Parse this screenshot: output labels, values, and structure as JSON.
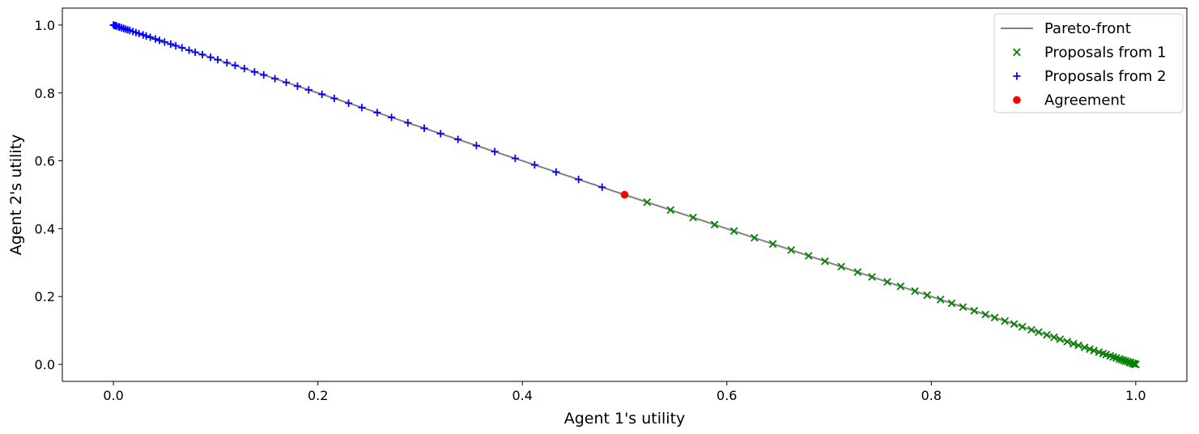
{
  "chart_data": {
    "type": "scatter",
    "title": "",
    "xlabel": "Agent 1's utility",
    "ylabel": "Agent 2's utility",
    "xlim": [
      -0.05,
      1.05
    ],
    "ylim": [
      -0.05,
      1.05
    ],
    "xticks": [
      0.0,
      0.2,
      0.4,
      0.6,
      0.8,
      1.0
    ],
    "yticks": [
      0.0,
      0.2,
      0.4,
      0.6,
      0.8,
      1.0
    ],
    "xtick_labels": [
      "0.0",
      "0.2",
      "0.4",
      "0.6",
      "0.8",
      "1.0"
    ],
    "ytick_labels": [
      "0.0",
      "0.2",
      "0.4",
      "0.6",
      "0.8",
      "1.0"
    ],
    "grid": false,
    "legend_position": "top-right",
    "series": [
      {
        "name": "Pareto-front",
        "kind": "line",
        "color": "#808080",
        "x": [
          0.0,
          0.25,
          0.5,
          0.75,
          1.0
        ],
        "y": [
          1.0,
          0.75,
          0.5,
          0.25,
          0.0
        ]
      },
      {
        "name": "Proposals from 1",
        "kind": "scatter",
        "marker": "x",
        "color": "#008000",
        "x": [
          0.522,
          0.545,
          0.567,
          0.588,
          0.607,
          0.627,
          0.645,
          0.663,
          0.68,
          0.696,
          0.712,
          0.728,
          0.742,
          0.757,
          0.77,
          0.784,
          0.796,
          0.809,
          0.82,
          0.831,
          0.842,
          0.853,
          0.862,
          0.872,
          0.881,
          0.889,
          0.898,
          0.905,
          0.913,
          0.92,
          0.926,
          0.933,
          0.939,
          0.944,
          0.95,
          0.955,
          0.959,
          0.964,
          0.968,
          0.971,
          0.975,
          0.978,
          0.981,
          0.984,
          0.986,
          0.988,
          0.99,
          0.992,
          0.994,
          0.995,
          0.997,
          0.998,
          0.999,
          1.0
        ],
        "y": [
          0.478,
          0.455,
          0.433,
          0.412,
          0.393,
          0.373,
          0.355,
          0.337,
          0.32,
          0.304,
          0.288,
          0.272,
          0.258,
          0.243,
          0.23,
          0.216,
          0.204,
          0.191,
          0.18,
          0.169,
          0.158,
          0.147,
          0.138,
          0.128,
          0.119,
          0.111,
          0.102,
          0.095,
          0.087,
          0.08,
          0.074,
          0.067,
          0.061,
          0.056,
          0.05,
          0.045,
          0.041,
          0.036,
          0.032,
          0.029,
          0.025,
          0.022,
          0.019,
          0.016,
          0.014,
          0.012,
          0.01,
          0.008,
          0.006,
          0.005,
          0.003,
          0.002,
          0.001,
          0.0
        ]
      },
      {
        "name": "Proposals from 2",
        "kind": "scatter",
        "marker": "+",
        "color": "#0000ff",
        "x": [
          0.0,
          0.001,
          0.002,
          0.003,
          0.005,
          0.006,
          0.008,
          0.01,
          0.012,
          0.014,
          0.016,
          0.019,
          0.022,
          0.025,
          0.029,
          0.032,
          0.036,
          0.041,
          0.045,
          0.05,
          0.056,
          0.061,
          0.067,
          0.074,
          0.08,
          0.087,
          0.095,
          0.102,
          0.111,
          0.119,
          0.128,
          0.138,
          0.147,
          0.158,
          0.169,
          0.18,
          0.191,
          0.204,
          0.216,
          0.23,
          0.243,
          0.258,
          0.272,
          0.288,
          0.304,
          0.32,
          0.337,
          0.355,
          0.373,
          0.393,
          0.412,
          0.433,
          0.455,
          0.478
        ],
        "y": [
          1.0,
          0.999,
          0.998,
          0.997,
          0.995,
          0.994,
          0.992,
          0.99,
          0.988,
          0.986,
          0.984,
          0.981,
          0.978,
          0.975,
          0.971,
          0.968,
          0.964,
          0.959,
          0.955,
          0.95,
          0.944,
          0.939,
          0.933,
          0.926,
          0.92,
          0.913,
          0.905,
          0.898,
          0.889,
          0.881,
          0.872,
          0.862,
          0.853,
          0.842,
          0.831,
          0.82,
          0.809,
          0.796,
          0.784,
          0.77,
          0.757,
          0.742,
          0.728,
          0.712,
          0.696,
          0.68,
          0.663,
          0.645,
          0.627,
          0.607,
          0.588,
          0.567,
          0.545,
          0.522
        ]
      },
      {
        "name": "Agreement",
        "kind": "scatter",
        "marker": "o",
        "color": "#ff0000",
        "x": [
          0.5
        ],
        "y": [
          0.5
        ]
      }
    ]
  }
}
